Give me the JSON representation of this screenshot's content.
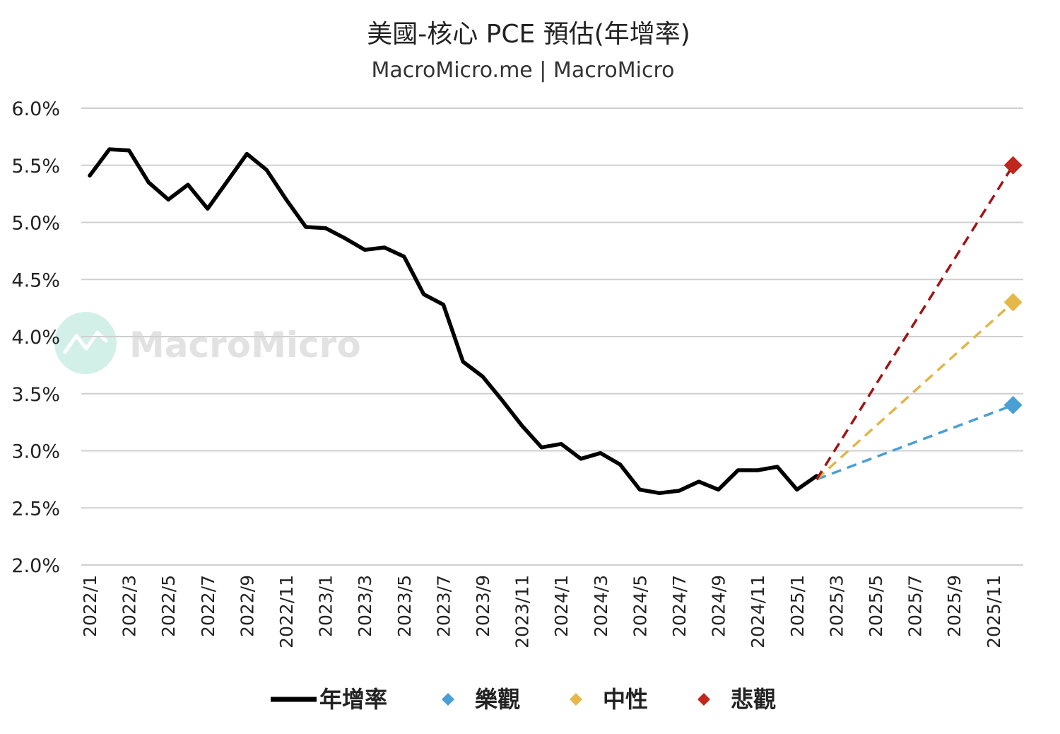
{
  "chart_data": {
    "type": "line",
    "title": "美國-核心 PCE 預估(年增率)",
    "subtitle": "MacroMicro.me | MacroMicro",
    "watermark": "MacroMicro",
    "ylim": [
      2.0,
      6.0
    ],
    "yticks": [
      "6.0%",
      "5.5%",
      "5.0%",
      "4.5%",
      "4.0%",
      "3.5%",
      "3.0%",
      "2.5%",
      "2.0%"
    ],
    "ytick_values": [
      6.0,
      5.5,
      5.0,
      4.5,
      4.0,
      3.5,
      3.0,
      2.5,
      2.0
    ],
    "xticks": [
      "2022/1",
      "2022/3",
      "2022/5",
      "2022/7",
      "2022/9",
      "2022/11",
      "2023/1",
      "2023/3",
      "2023/5",
      "2023/7",
      "2023/9",
      "2023/11",
      "2024/1",
      "2024/3",
      "2024/5",
      "2024/7",
      "2024/9",
      "2024/11",
      "2025/1",
      "2025/3",
      "2025/5",
      "2025/7",
      "2025/9",
      "2025/11"
    ],
    "grid": true,
    "legend_position": "bottom",
    "series": [
      {
        "name": "年增率",
        "style": "solid",
        "color": "#000000",
        "x": [
          "2022/1",
          "2022/2",
          "2022/3",
          "2022/4",
          "2022/5",
          "2022/6",
          "2022/7",
          "2022/8",
          "2022/9",
          "2022/10",
          "2022/11",
          "2022/12",
          "2023/1",
          "2023/2",
          "2023/3",
          "2023/4",
          "2023/5",
          "2023/6",
          "2023/7",
          "2023/8",
          "2023/9",
          "2023/10",
          "2023/11",
          "2023/12",
          "2024/1",
          "2024/2",
          "2024/3",
          "2024/4",
          "2024/5",
          "2024/6",
          "2024/7",
          "2024/8",
          "2024/9",
          "2024/10",
          "2024/11",
          "2024/12",
          "2025/1",
          "2025/2"
        ],
        "values": [
          5.41,
          5.64,
          5.63,
          5.35,
          5.2,
          5.33,
          5.12,
          5.36,
          5.6,
          5.46,
          5.2,
          4.96,
          4.95,
          4.86,
          4.76,
          4.78,
          4.7,
          4.37,
          4.28,
          3.78,
          3.65,
          3.44,
          3.22,
          3.03,
          3.06,
          2.93,
          2.98,
          2.88,
          2.66,
          2.63,
          2.65,
          2.73,
          2.66,
          2.83,
          2.83,
          2.86,
          2.66,
          2.78
        ]
      },
      {
        "name": "樂觀",
        "style": "dashed",
        "color": "#4a9fd4",
        "marker_color": "#4a9fd4",
        "x": [
          "2025/2",
          "2025/12"
        ],
        "values": [
          2.75,
          3.4
        ]
      },
      {
        "name": "中性",
        "style": "dashed",
        "color": "#e0b64a",
        "marker_color": "#e6b84a",
        "x": [
          "2025/2",
          "2025/12"
        ],
        "values": [
          2.75,
          4.3
        ]
      },
      {
        "name": "悲觀",
        "style": "dashed",
        "color": "#a01515",
        "marker_color": "#c0281e",
        "x": [
          "2025/2",
          "2025/12"
        ],
        "values": [
          2.75,
          5.5
        ]
      }
    ]
  }
}
